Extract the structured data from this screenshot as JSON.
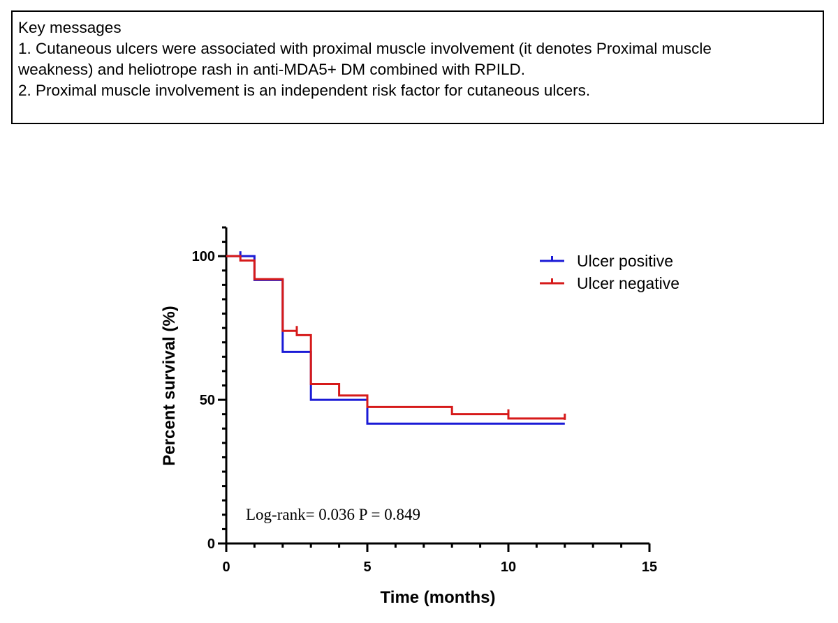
{
  "key_messages": {
    "heading": "Key messages",
    "line1a": "1. Cutaneous ulcers were associated with proximal muscle involvement (it denotes Proximal muscle",
    "line1b": "weakness) and heliotrope rash in anti-MDA5+ DM combined with RPILD.",
    "line2": "2. Proximal muscle involvement is an independent risk factor for cutaneous ulcers."
  },
  "chart_data": {
    "type": "line",
    "subtype": "kaplan-meier step",
    "xlabel": "Time (months)",
    "ylabel": "Percent survival (%)",
    "xlim": [
      0,
      15
    ],
    "ylim": [
      0,
      110
    ],
    "x_ticks": [
      0,
      5,
      10,
      15
    ],
    "x_tick_labels": [
      "0",
      "5",
      "10",
      "15"
    ],
    "y_ticks": [
      0,
      50,
      100
    ],
    "y_tick_labels": [
      "0",
      "50",
      "100"
    ],
    "legend_position": "top-right",
    "grid": false,
    "annotation": "Log-rank= 0.036  P = 0.849",
    "series": [
      {
        "name": "Ulcer positive",
        "color": "#1a1ad6",
        "steps": [
          [
            0,
            100
          ],
          [
            1,
            91.7
          ],
          [
            2,
            66.7
          ],
          [
            3,
            50
          ],
          [
            5,
            41.7
          ],
          [
            12,
            41.7
          ]
        ],
        "censored": [
          [
            0.5,
            100
          ]
        ]
      },
      {
        "name": "Ulcer negative",
        "color": "#d61a1a",
        "steps": [
          [
            0,
            100
          ],
          [
            0.5,
            98.5
          ],
          [
            1,
            92
          ],
          [
            2,
            74
          ],
          [
            2.5,
            72.5
          ],
          [
            3,
            55.5
          ],
          [
            4,
            51.5
          ],
          [
            5,
            47.5
          ],
          [
            8,
            45
          ],
          [
            10,
            43.5
          ],
          [
            12,
            43.5
          ]
        ],
        "censored": [
          [
            2.5,
            74
          ],
          [
            10,
            45
          ],
          [
            12,
            43.5
          ]
        ]
      }
    ]
  }
}
